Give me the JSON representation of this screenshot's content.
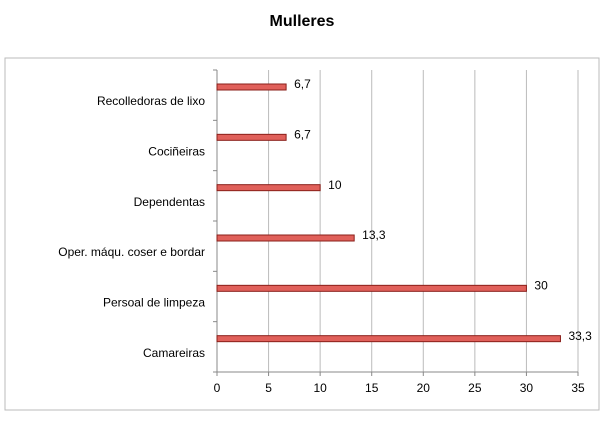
{
  "chart_data": {
    "type": "hbar",
    "title": "Mulleres",
    "categories": [
      "Recolledoras de lixo",
      "Cociñeiras",
      "Dependentas",
      "Oper. máqu. coser e bordar",
      "Persoal de limpeza",
      "Camareiras"
    ],
    "values": [
      6.7,
      6.7,
      10,
      13.3,
      30,
      33.3
    ],
    "value_labels": [
      "6,7",
      "6,7",
      "10",
      "13,3",
      "30",
      "33,3"
    ],
    "color": "#e0605a",
    "xlim": [
      0,
      35
    ],
    "xticks": [
      0,
      5,
      10,
      15,
      20,
      25,
      30,
      35
    ],
    "grid": true
  }
}
